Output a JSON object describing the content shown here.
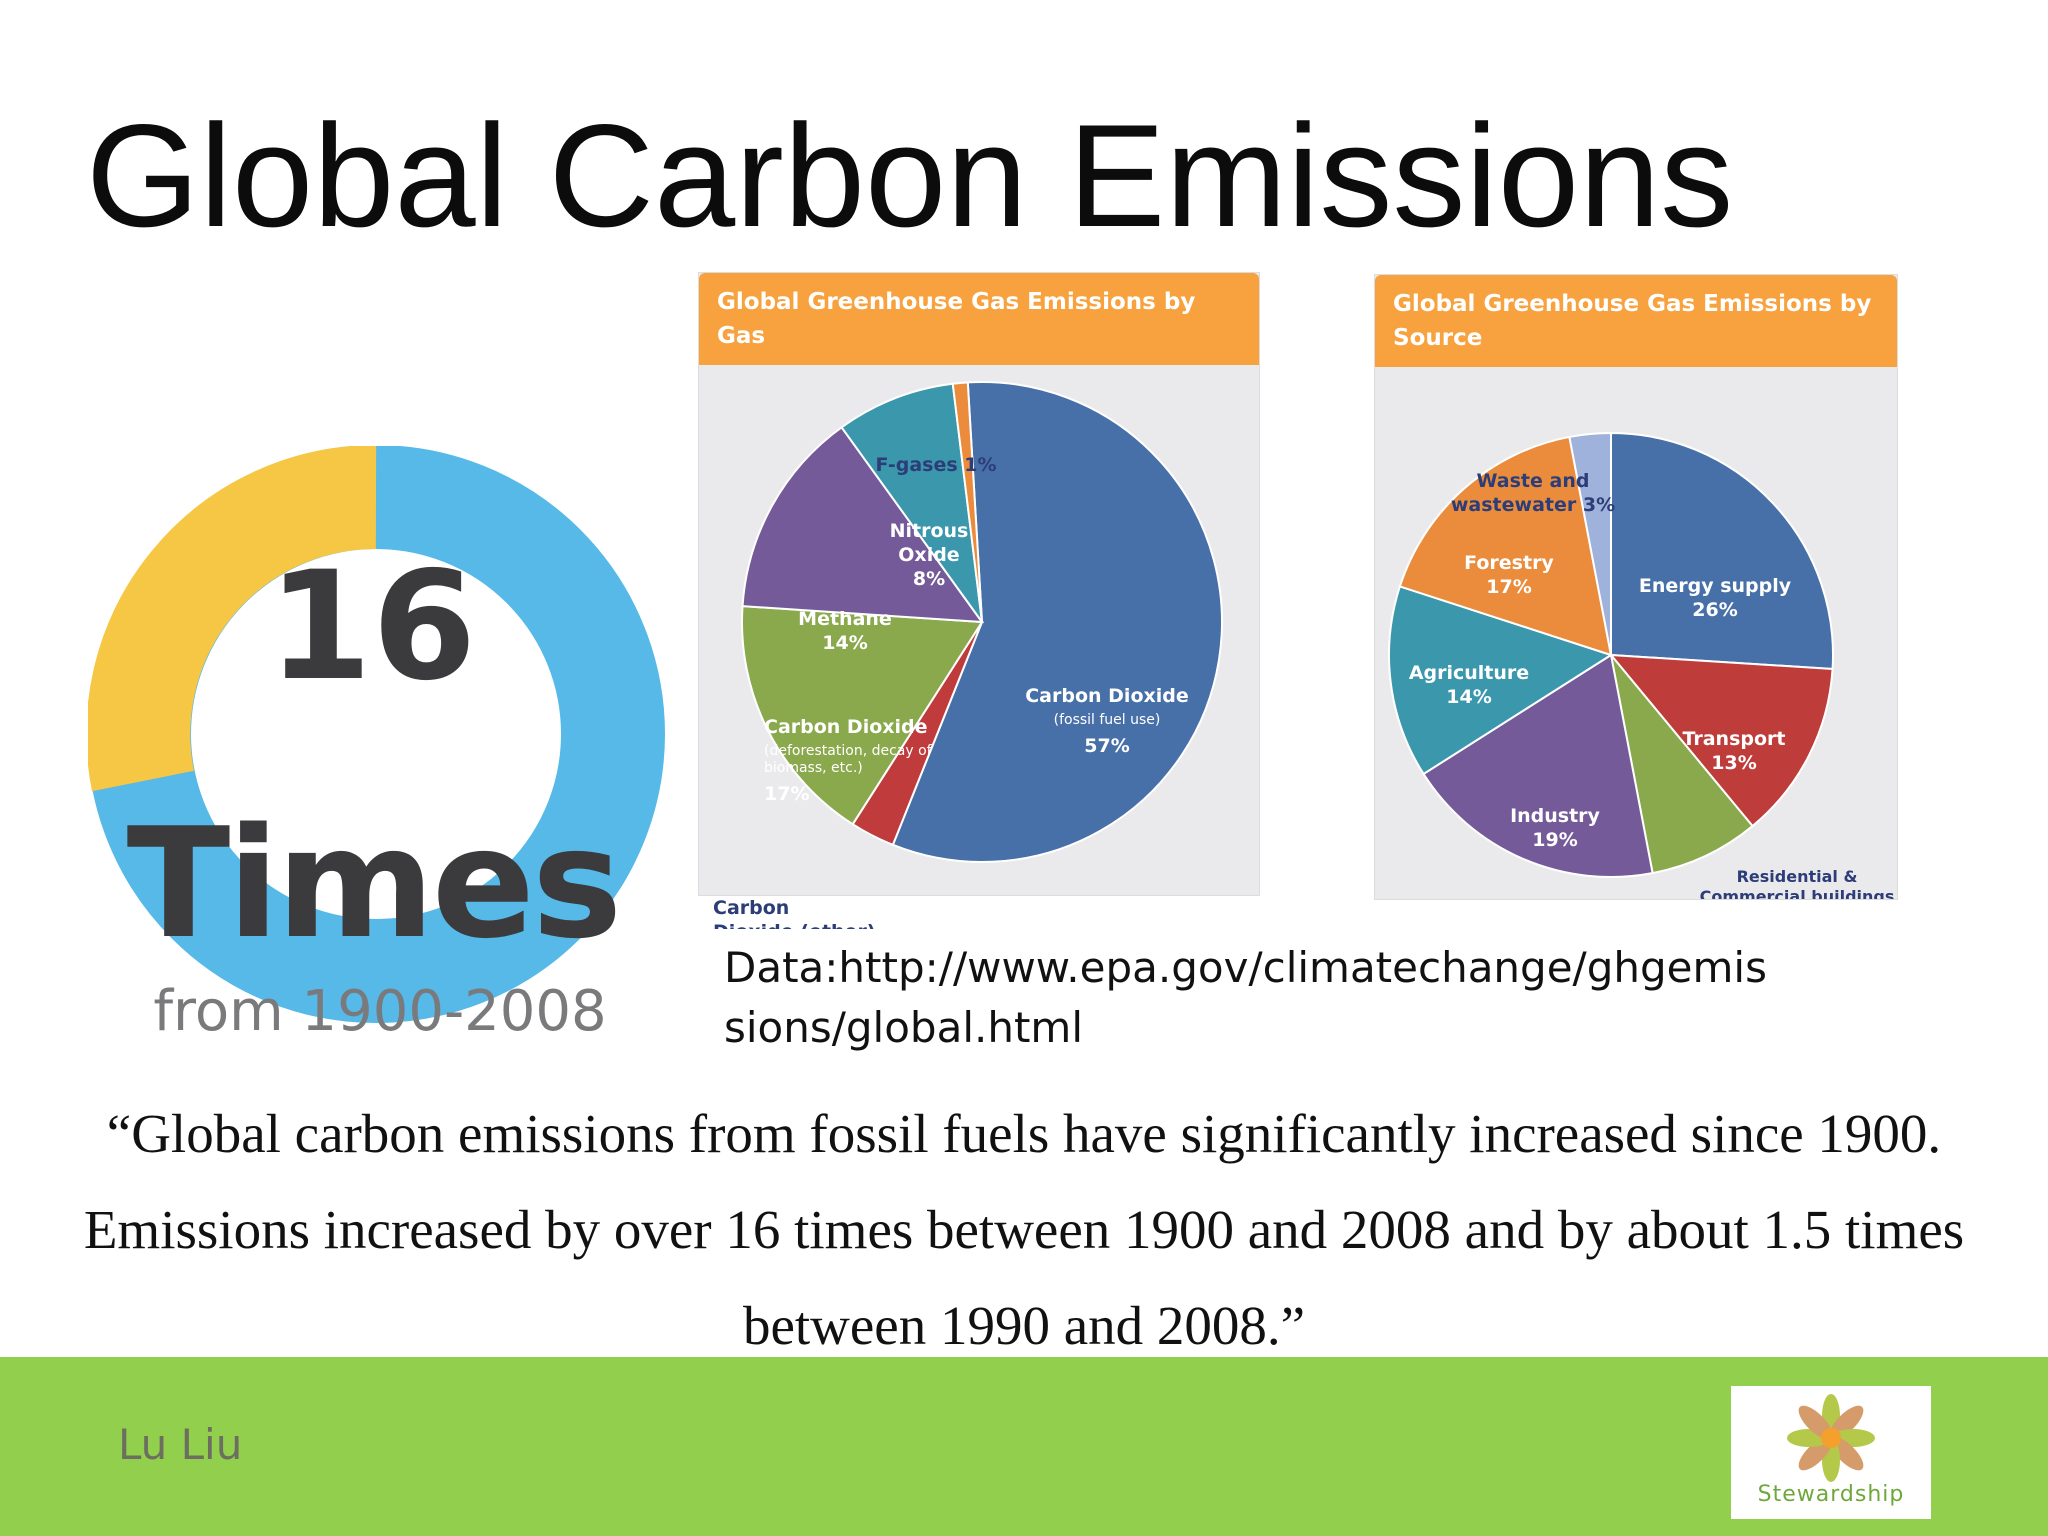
{
  "slide": {
    "title": "Global Carbon Emissions",
    "stat_number": "16",
    "stat_unit": "Times",
    "stat_range": "from 1900-2008",
    "source": "Data:http://www.epa.gov/climatechange/ghgemissions/global.html",
    "quote": "“Global carbon emissions from fossil fuels have significantly increased since 1900. Emissions increased by over 16 times between 1900 and 2008 and by about 1.5 times between 1990 and 2008.”",
    "author": "Lu Liu",
    "logo_text": "Stewardship"
  },
  "colors": {
    "ring_blue": "#56b9e8",
    "ring_yellow": "#f6c744",
    "header_orange": "#f7a23f",
    "footer_green": "#92cf4c"
  },
  "chart_data": [
    {
      "type": "pie",
      "title": "Global Greenhouse Gas Emissions by Gas",
      "slices": [
        {
          "label": "Carbon Dioxide",
          "sublabel": "(fossil fuel use)",
          "value": 57,
          "value_label": "57%",
          "color": "#4870a8"
        },
        {
          "label": "Carbon Dioxide (other)",
          "sublabel": "",
          "value": 3,
          "value_label": "3%",
          "color": "#c03c3c"
        },
        {
          "label": "Carbon Dioxide",
          "sublabel": "(deforestation, decay of biomass, etc.)",
          "value": 17,
          "value_label": "17%",
          "color": "#8aa84c"
        },
        {
          "label": "Methane",
          "sublabel": "",
          "value": 14,
          "value_label": "14%",
          "color": "#755a9a"
        },
        {
          "label": "Nitrous Oxide",
          "sublabel": "",
          "value": 8,
          "value_label": "8%",
          "color": "#3a97ac"
        },
        {
          "label": "F-gases",
          "sublabel": "",
          "value": 1,
          "value_label": "1%",
          "color": "#ea8c3c"
        }
      ]
    },
    {
      "type": "pie",
      "title": "Global Greenhouse Gas Emissions by Source",
      "slices": [
        {
          "label": "Energy supply",
          "value": 26,
          "value_label": "26%",
          "color": "#4870a8"
        },
        {
          "label": "Transport",
          "value": 13,
          "value_label": "13%",
          "color": "#be3c3a"
        },
        {
          "label": "Residential & Commercial buildings",
          "value": 8,
          "value_label": "8%",
          "color": "#8aa84c"
        },
        {
          "label": "Industry",
          "value": 19,
          "value_label": "19%",
          "color": "#755a9a"
        },
        {
          "label": "Agriculture",
          "value": 14,
          "value_label": "14%",
          "color": "#3a97ac"
        },
        {
          "label": "Forestry",
          "value": 17,
          "value_label": "17%",
          "color": "#ea8c3c"
        },
        {
          "label": "Waste and wastewater",
          "value": 3,
          "value_label": "3%",
          "color": "#9fb2db"
        }
      ]
    }
  ]
}
